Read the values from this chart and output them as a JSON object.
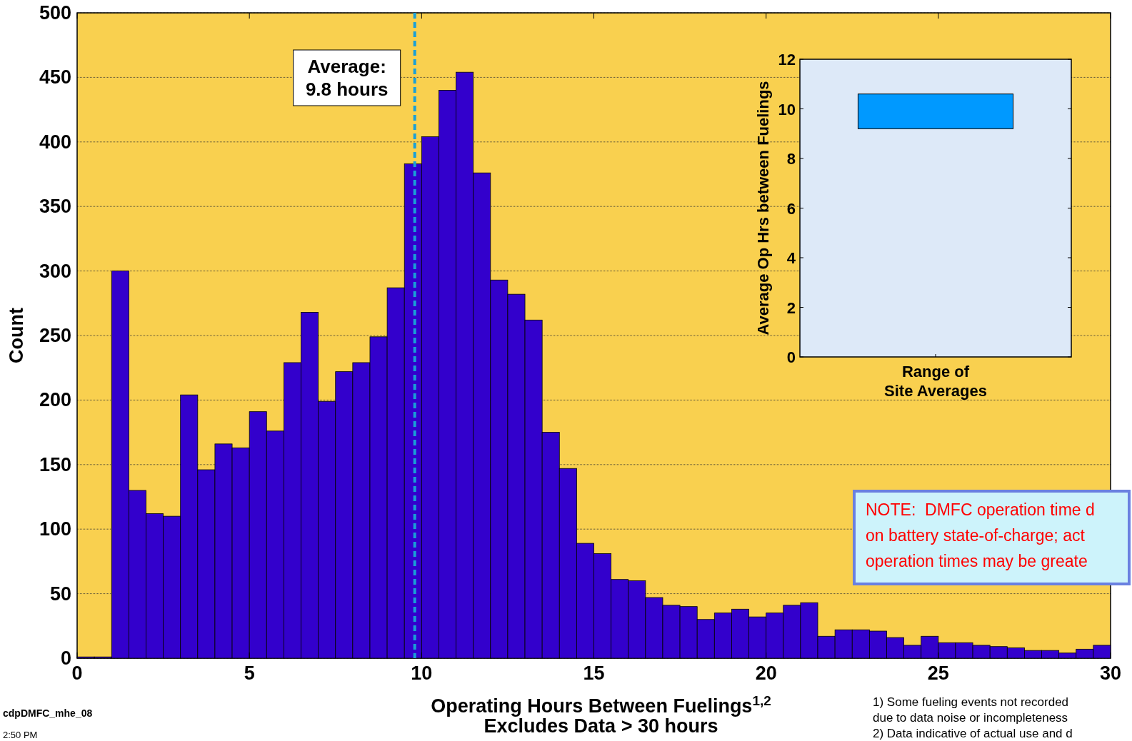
{
  "chart_data": [
    {
      "type": "histogram",
      "xlabel": "Operating Hours Between Fuelings$^{1,2}$\nExcludes Data > 30 hours",
      "ylabel": "Count",
      "color": "#3300cc",
      "bins": [
        0,
        0.5,
        1,
        1.5,
        2,
        2.5,
        3,
        3.5,
        4,
        4.5,
        5,
        5.5,
        6,
        6.5,
        7,
        7.5,
        8,
        8.5,
        9,
        9.5,
        10,
        10.5,
        11,
        11.5,
        12,
        12.5,
        13,
        13.5,
        14,
        14.5,
        15,
        15.5,
        16,
        16.5,
        17,
        17.5,
        18,
        18.5,
        19,
        19.5,
        20,
        20.5,
        21,
        21.5,
        22,
        22.5,
        23,
        23.5,
        24,
        24.5,
        25,
        25.5,
        26,
        26.5,
        27,
        27.5,
        28,
        28.5,
        29,
        29.5,
        30
      ],
      "values": [
        1,
        1,
        300,
        130,
        112,
        110,
        204,
        146,
        166,
        163,
        191,
        176,
        229,
        268,
        199,
        222,
        229,
        249,
        287,
        383,
        404,
        440,
        454,
        376,
        293,
        282,
        262,
        175,
        147,
        89,
        81,
        61,
        60,
        47,
        41,
        40,
        30,
        35,
        38,
        32,
        35,
        41,
        43,
        17,
        22,
        22,
        21,
        16,
        10,
        17,
        12,
        12,
        10,
        9,
        8,
        6,
        6,
        4,
        7,
        10
      ],
      "xlim": [
        0,
        30
      ],
      "xticks": [
        0,
        5,
        10,
        15,
        20,
        25,
        30
      ],
      "ylim": [
        0,
        500
      ],
      "yticks": [
        0,
        50,
        100,
        150,
        200,
        250,
        300,
        350,
        400,
        450,
        500
      ],
      "grid": "y",
      "ref_lines": [
        {
          "axis": "x",
          "value": 9.8,
          "label": "Average:\n9.8 hours",
          "color": "#1a9fd6",
          "line_style": "dashed"
        }
      ],
      "annotations": [
        "cdpDMFC_mhe_08",
        "2:50 PM",
        "NOTE:  DMFC operation time d\non battery state-of-charge; act\noperation times may be greate",
        "1) Some fueling events not recorded\ndue to data noise or incompleteness\n2) Data indicative of actual use and d"
      ]
    },
    {
      "type": "bar",
      "categories": [
        null
      ],
      "xlabel": "Range of\nSite Averages",
      "ylabel": "Average Op Hrs between Fuelings",
      "base": [
        9.2
      ],
      "values": [
        1.4
      ],
      "color": "#0099ff",
      "ylim": [
        0,
        12
      ],
      "yticks": [
        0,
        2,
        4,
        6,
        8,
        10,
        12
      ]
    }
  ]
}
